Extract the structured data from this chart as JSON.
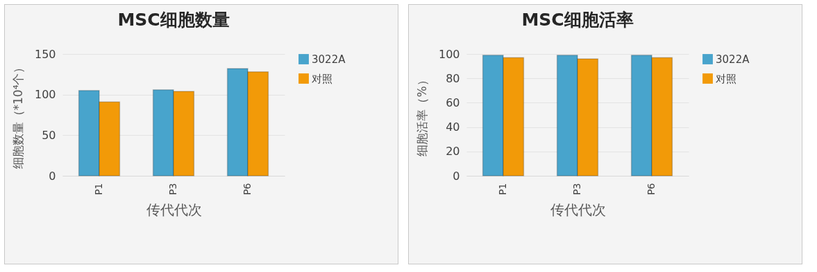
{
  "chart_data": [
    {
      "type": "bar",
      "title": "MSC细胞数量",
      "xlabel": "传代代次",
      "ylabel": "细胞数量（*10⁴个）",
      "categories": [
        "P1",
        "P3",
        "P6"
      ],
      "series": [
        {
          "name": "3022A",
          "color": "#48a4cc",
          "values": [
            105,
            106,
            132
          ]
        },
        {
          "name": "对照",
          "color": "#f29a08",
          "values": [
            91,
            104,
            128
          ]
        }
      ],
      "ylim": [
        0,
        150
      ],
      "yticks": [
        0,
        50,
        100,
        150
      ],
      "grid": "y",
      "legend": "right"
    },
    {
      "type": "bar",
      "title": "MSC细胞活率",
      "xlabel": "传代代次",
      "ylabel": "细胞活率（%）",
      "categories": [
        "P1",
        "P3",
        "P6"
      ],
      "series": [
        {
          "name": "3022A",
          "color": "#48a4cc",
          "values": [
            99,
            99,
            99
          ]
        },
        {
          "name": "对照",
          "color": "#f29a08",
          "values": [
            97,
            96,
            97
          ]
        }
      ],
      "ylim": [
        0,
        100
      ],
      "yticks": [
        0,
        20,
        40,
        60,
        80,
        100
      ],
      "grid": "y",
      "legend": "right"
    }
  ]
}
